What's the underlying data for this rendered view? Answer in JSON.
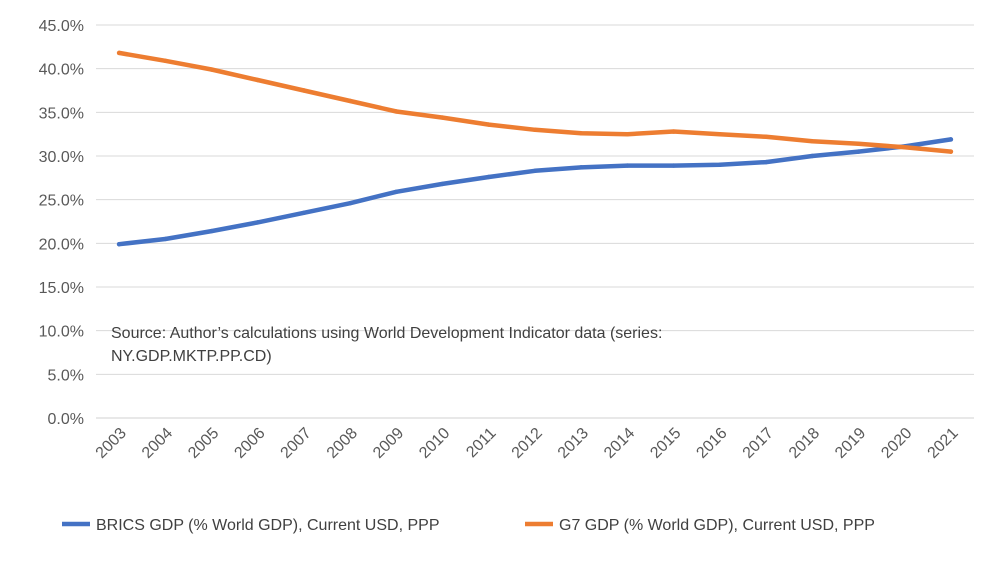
{
  "chart_data": {
    "type": "line",
    "title": "",
    "xlabel": "",
    "ylabel": "",
    "ylim": [
      0,
      45
    ],
    "y_ticks": [
      "0.0%",
      "5.0%",
      "10.0%",
      "15.0%",
      "20.0%",
      "25.0%",
      "30.0%",
      "35.0%",
      "40.0%",
      "45.0%"
    ],
    "categories": [
      "2003",
      "2004",
      "2005",
      "2006",
      "2007",
      "2008",
      "2009",
      "2010",
      "2011",
      "2012",
      "2013",
      "2014",
      "2015",
      "2016",
      "2017",
      "2018",
      "2019",
      "2020",
      "2021"
    ],
    "series": [
      {
        "name": "BRICS GDP (% World GDP), Current USD, PPP",
        "color": "#4472C4",
        "values": [
          19.9,
          20.5,
          21.4,
          22.4,
          23.5,
          24.6,
          25.9,
          26.8,
          27.6,
          28.3,
          28.7,
          28.9,
          28.9,
          29.0,
          29.3,
          30.0,
          30.5,
          31.1,
          31.9
        ]
      },
      {
        "name": "G7 GDP (% World GDP), Current USD, PPP",
        "color": "#ED7D31",
        "values": [
          41.8,
          40.9,
          39.9,
          38.7,
          37.5,
          36.3,
          35.1,
          34.4,
          33.6,
          33.0,
          32.6,
          32.5,
          32.8,
          32.5,
          32.2,
          31.7,
          31.4,
          31.0,
          30.5
        ]
      }
    ],
    "grid": true,
    "legend": "bottom",
    "annotation": "Source: Author’s calculations using World Development Indicator data (series: NY.GDP.MKTP.PP.CD)"
  }
}
